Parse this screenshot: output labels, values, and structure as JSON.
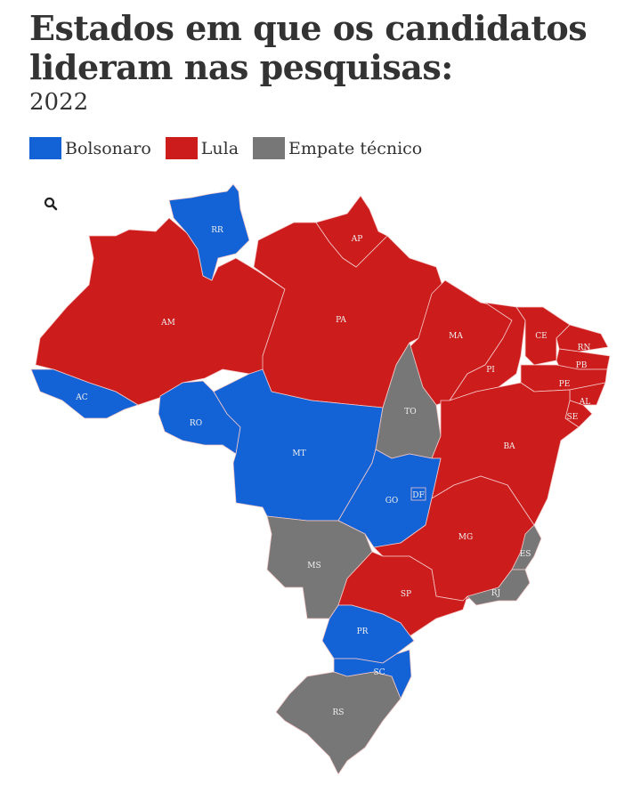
{
  "header": {
    "title_line1": "Estados em que os candidatos",
    "title_line2": "lideram nas pesquisas:",
    "subtitle": "2022"
  },
  "legend": [
    {
      "label": "Bolsonaro",
      "color": "#1463d6"
    },
    {
      "label": "Lula",
      "color": "#cc1c1c"
    },
    {
      "label": "Empate técnico",
      "color": "#777777"
    }
  ],
  "search_icon": "search-icon",
  "states": {
    "RR": {
      "label": "RR",
      "leader": "Bolsonaro"
    },
    "AP": {
      "label": "AP",
      "leader": "Lula"
    },
    "AM": {
      "label": "AM",
      "leader": "Lula"
    },
    "AC": {
      "label": "AC",
      "leader": "Bolsonaro"
    },
    "RO": {
      "label": "RO",
      "leader": "Bolsonaro"
    },
    "MT": {
      "label": "MT",
      "leader": "Bolsonaro"
    },
    "PA": {
      "label": "PA",
      "leader": "Lula"
    },
    "MA": {
      "label": "MA",
      "leader": "Lula"
    },
    "TO": {
      "label": "TO",
      "leader": "Empate técnico"
    },
    "PI": {
      "label": "PI",
      "leader": "Lula"
    },
    "CE": {
      "label": "CE",
      "leader": "Lula"
    },
    "RN": {
      "label": "RN",
      "leader": "Lula"
    },
    "PB": {
      "label": "PB",
      "leader": "Lula"
    },
    "PE": {
      "label": "PE",
      "leader": "Lula"
    },
    "AL": {
      "label": "AL",
      "leader": "Lula"
    },
    "SE": {
      "label": "SE",
      "leader": "Lula"
    },
    "BA": {
      "label": "BA",
      "leader": "Lula"
    },
    "GO": {
      "label": "GO",
      "leader": "Bolsonaro"
    },
    "DF": {
      "label": "DF",
      "leader": "Bolsonaro"
    },
    "MS": {
      "label": "MS",
      "leader": "Empate técnico"
    },
    "MG": {
      "label": "MG",
      "leader": "Lula"
    },
    "ES": {
      "label": "ES",
      "leader": "Empate técnico"
    },
    "RJ": {
      "label": "RJ",
      "leader": "Empate técnico"
    },
    "SP": {
      "label": "SP",
      "leader": "Lula"
    },
    "PR": {
      "label": "PR",
      "leader": "Bolsonaro"
    },
    "SC": {
      "label": "SC",
      "leader": "Bolsonaro"
    },
    "RS": {
      "label": "RS",
      "leader": "Empate técnico"
    }
  }
}
